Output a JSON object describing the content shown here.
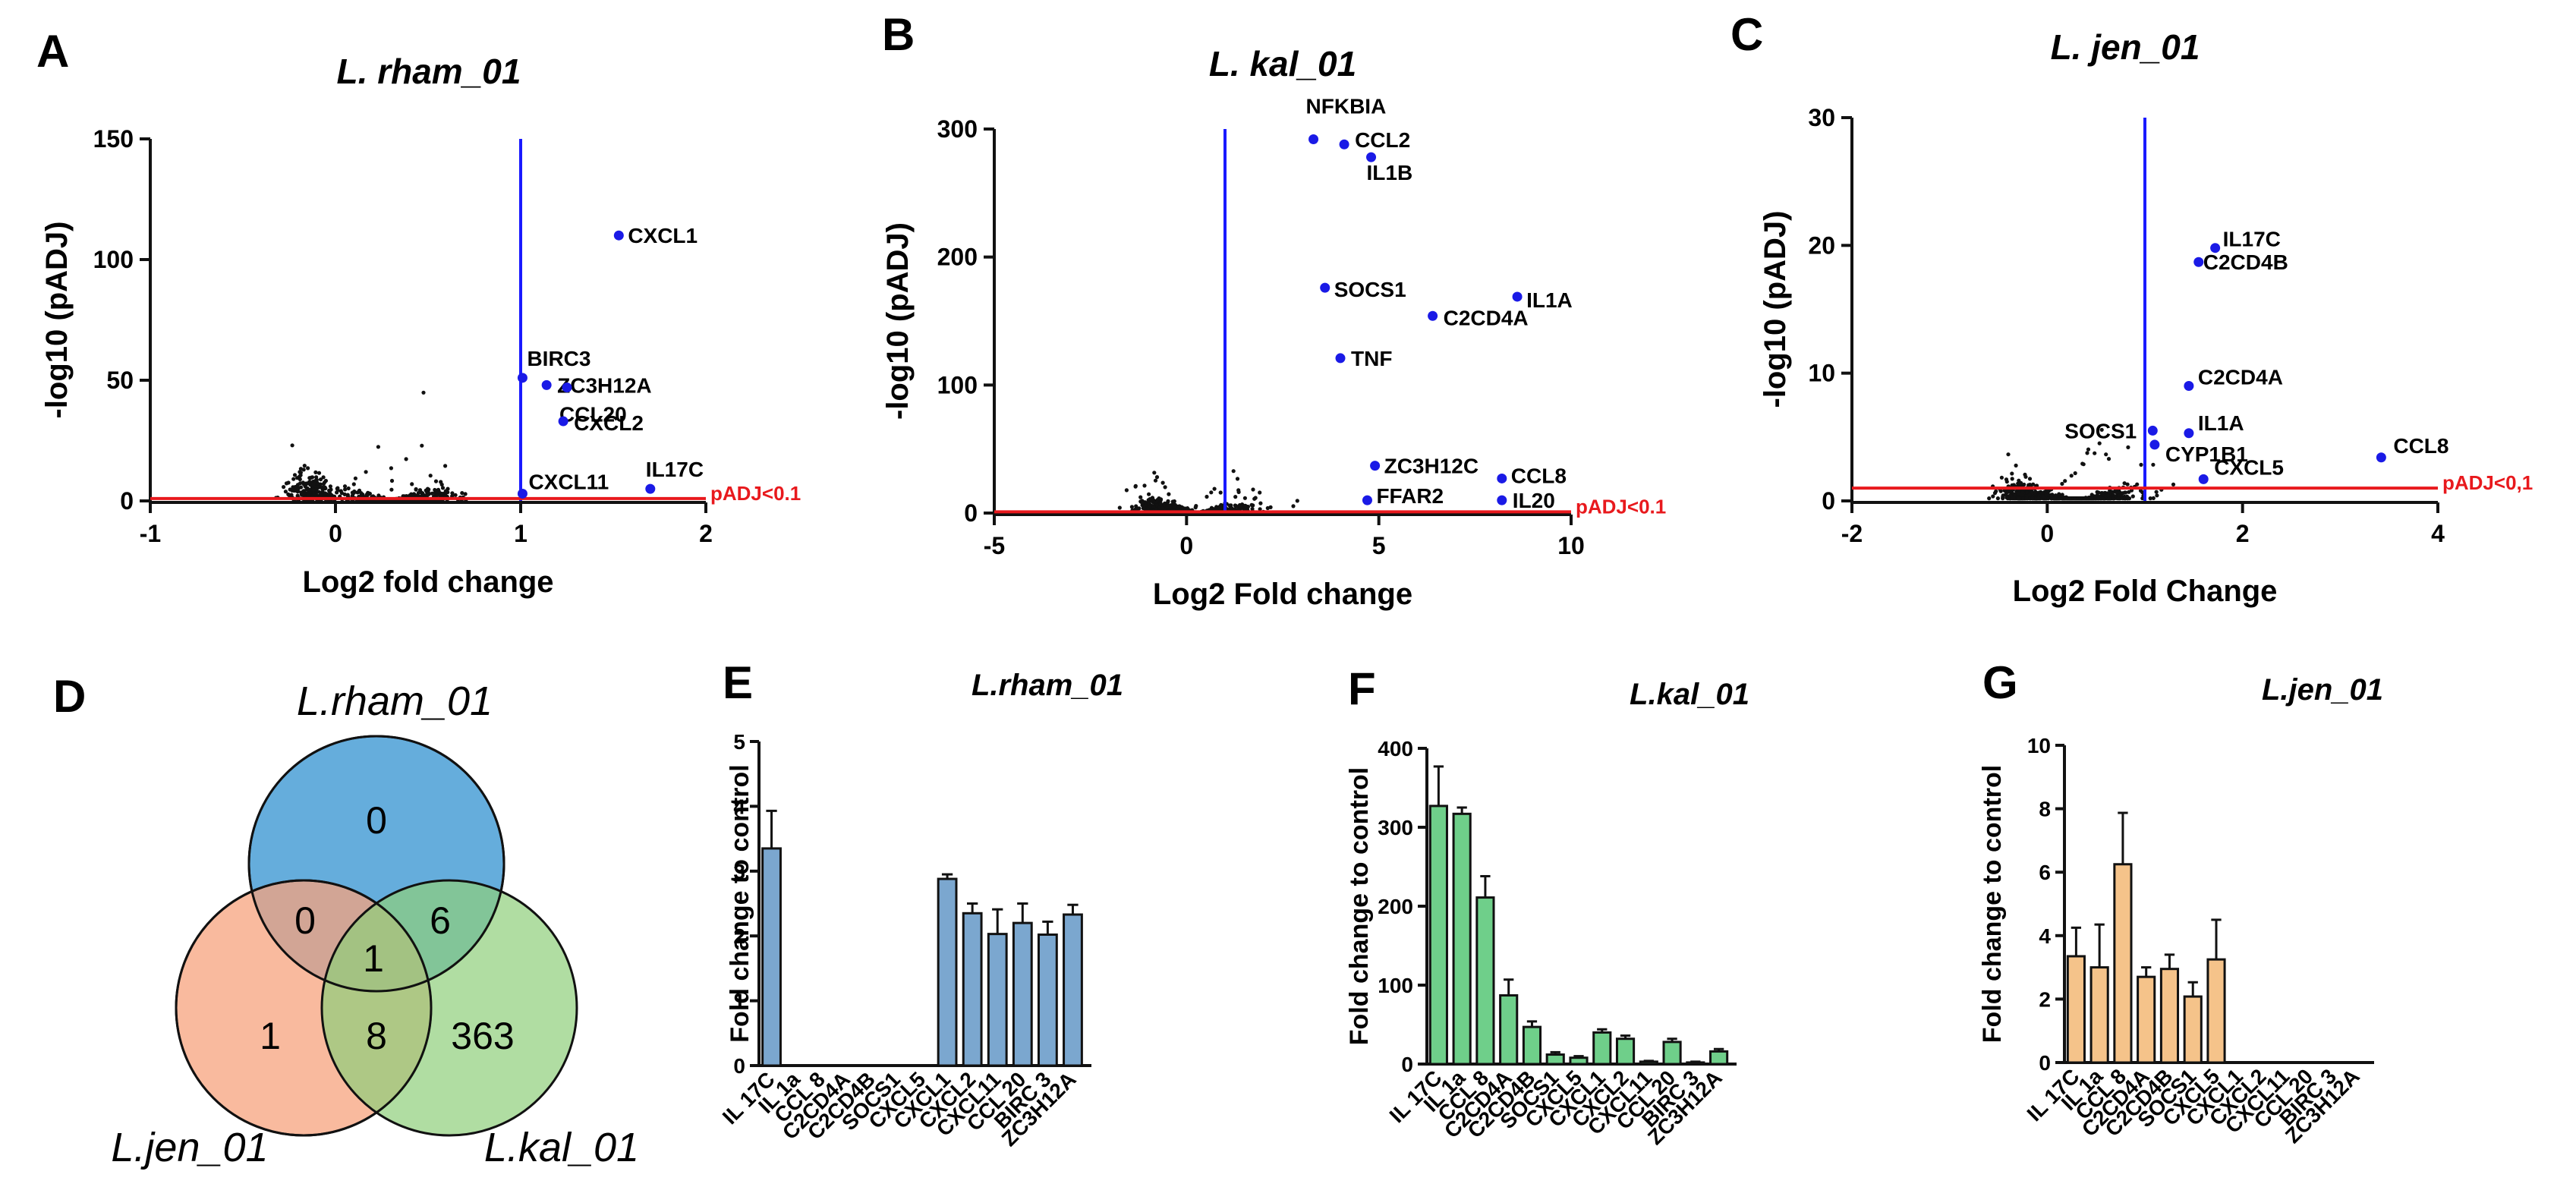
{
  "colors": {
    "blue_line": "#1a1aff",
    "red_line": "#e8191d",
    "point": "#111111",
    "highlight": "#1a1ae6",
    "bar_E": "#7ba7cf",
    "bar_F": "#6fcf8a",
    "bar_G": "#f5c38a",
    "venn_rham": "#4a9fd6",
    "venn_jen": "#f7a37d",
    "venn_kal": "#8fcf7a"
  },
  "chart_data": [
    {
      "panel": "A",
      "type": "scatter",
      "title": "L. rham_01",
      "xlabel": "Log2 fold change",
      "ylabel": "-log10 (pADJ)",
      "xlim": [
        -1,
        2
      ],
      "ylim": [
        0,
        150
      ],
      "xticks": [
        -1,
        0,
        1,
        2
      ],
      "yticks": [
        0,
        50,
        100,
        150
      ],
      "vline_x": 1,
      "hline_y": 1,
      "threshold_label": "pADJ<0.1",
      "labeled_points": [
        {
          "label": "CXCL1",
          "x": 1.53,
          "y": 110
        },
        {
          "label": "BIRC3",
          "x": 1.01,
          "y": 51
        },
        {
          "label": "ZC3H12A",
          "x": 1.14,
          "y": 48
        },
        {
          "label": "CCL20",
          "x": 1.25,
          "y": 47
        },
        {
          "label": "CXCL2",
          "x": 1.23,
          "y": 33
        },
        {
          "label": "CXCL11",
          "x": 1.01,
          "y": 3
        },
        {
          "label": "IL17C",
          "x": 1.7,
          "y": 5
        }
      ]
    },
    {
      "panel": "B",
      "type": "scatter",
      "title": "L. kal_01",
      "xlabel": "Log2 Fold change",
      "ylabel": "-log10 (pADJ)",
      "xlim": [
        -5,
        10
      ],
      "ylim": [
        0,
        300
      ],
      "xticks": [
        -5,
        0,
        5,
        10
      ],
      "yticks": [
        0,
        100,
        200,
        300
      ],
      "vline_x": 1,
      "hline_y": 1,
      "threshold_label": "pADJ<0.1",
      "labeled_points": [
        {
          "label": "NFKBIA",
          "x": 3.3,
          "y": 292
        },
        {
          "label": "CCL2",
          "x": 4.1,
          "y": 288
        },
        {
          "label": "IL1B",
          "x": 4.8,
          "y": 278
        },
        {
          "label": "SOCS1",
          "x": 3.6,
          "y": 176
        },
        {
          "label": "IL1A",
          "x": 8.6,
          "y": 169
        },
        {
          "label": "C2CD4A",
          "x": 6.4,
          "y": 154
        },
        {
          "label": "TNF",
          "x": 4.0,
          "y": 121
        },
        {
          "label": "ZC3H12C",
          "x": 4.9,
          "y": 37
        },
        {
          "label": "CCL8",
          "x": 8.2,
          "y": 27
        },
        {
          "label": "FFAR2",
          "x": 4.7,
          "y": 10
        },
        {
          "label": "IL20",
          "x": 8.2,
          "y": 10
        }
      ]
    },
    {
      "panel": "C",
      "type": "scatter",
      "title": "L. jen_01",
      "xlabel": "Log2 Fold Change",
      "ylabel": "-log10 (pADJ)",
      "xlim": [
        -2,
        4
      ],
      "ylim": [
        0,
        30
      ],
      "xticks": [
        -2,
        0,
        2,
        4
      ],
      "yticks": [
        0,
        10,
        20,
        30
      ],
      "vline_x": 1,
      "hline_y": 1,
      "threshold_label": "pADJ<0,1",
      "labeled_points": [
        {
          "label": "IL17C",
          "x": 1.72,
          "y": 19.8
        },
        {
          "label": "C2CD4B",
          "x": 1.55,
          "y": 18.7
        },
        {
          "label": "C2CD4A",
          "x": 1.45,
          "y": 9.0
        },
        {
          "label": "SOCS1",
          "x": 1.08,
          "y": 5.5
        },
        {
          "label": "IL1A",
          "x": 1.45,
          "y": 5.3
        },
        {
          "label": "CYP1B1",
          "x": 1.1,
          "y": 4.4
        },
        {
          "label": "CXCL5",
          "x": 1.6,
          "y": 1.7
        },
        {
          "label": "CCL8",
          "x": 3.42,
          "y": 3.4
        }
      ]
    },
    {
      "panel": "E",
      "type": "bar",
      "title": "L.rham_01",
      "ylabel": "Fold change to control",
      "ylim": [
        0,
        5
      ],
      "yticks": [
        0,
        1,
        2,
        3,
        4,
        5
      ],
      "categories": [
        "IL 17C",
        "IL 1a",
        "CCL 8",
        "C2CD4A",
        "C2CD4B",
        "SOCS1",
        "CXCL5",
        "CXCL1",
        "CXCL2",
        "CXCL11",
        "CCL 20",
        "BIRC 3",
        "ZC3H12A"
      ],
      "values": [
        3.35,
        0,
        0,
        0,
        0,
        0,
        0,
        2.88,
        2.35,
        2.03,
        2.2,
        2.02,
        2.33
      ],
      "errors": [
        0.58,
        0,
        0,
        0,
        0,
        0,
        0,
        0.07,
        0.15,
        0.38,
        0.3,
        0.2,
        0.15
      ]
    },
    {
      "panel": "F",
      "type": "bar",
      "title": "L.kal_01",
      "ylabel": "Fold change to control",
      "ylim": [
        0,
        400
      ],
      "yticks": [
        0,
        100,
        200,
        300,
        400
      ],
      "categories": [
        "IL 17C",
        "IL 1a",
        "CCL 8",
        "C2CD4A",
        "C2CD4B",
        "SOCS1",
        "CXCL5",
        "CXCL1",
        "CXCL2",
        "CXCL11",
        "CCL 20",
        "BIRC 3",
        "ZC3H12A"
      ],
      "values": [
        327,
        317,
        211,
        87,
        47,
        12,
        8,
        40,
        32,
        3,
        28,
        2,
        16
      ],
      "errors": [
        50,
        8,
        27,
        20,
        7,
        3,
        2,
        4,
        4,
        1,
        4,
        1,
        3
      ]
    },
    {
      "panel": "G",
      "type": "bar",
      "title": "L.jen_01",
      "ylabel": "Fold change to control",
      "ylim": [
        0,
        10
      ],
      "yticks": [
        0,
        2,
        4,
        6,
        8,
        10
      ],
      "categories": [
        "IL 17C",
        "IL 1a",
        "CCL 8",
        "C2CD4A",
        "C2CD4B",
        "SOCS1",
        "CXCL5",
        "CXCL1",
        "CXCL2",
        "CXCL11",
        "CCL 20",
        "BIRC 3",
        "ZC3H12A"
      ],
      "values": [
        3.35,
        3.0,
        6.25,
        2.7,
        2.95,
        2.08,
        3.25,
        0,
        0,
        0,
        0,
        0,
        0
      ],
      "errors": [
        0.9,
        1.35,
        1.62,
        0.3,
        0.45,
        0.45,
        1.25,
        0,
        0,
        0,
        0,
        0,
        0
      ]
    }
  ],
  "venn": {
    "panel": "D",
    "labels": {
      "rham": "L.rham_01",
      "jen": "L.jen_01",
      "kal": "L.kal_01"
    },
    "counts": {
      "rham_only": "0",
      "jen_only": "1",
      "kal_only": "363",
      "rham_jen": "0",
      "rham_kal": "6",
      "jen_kal": "8",
      "all": "1"
    }
  }
}
